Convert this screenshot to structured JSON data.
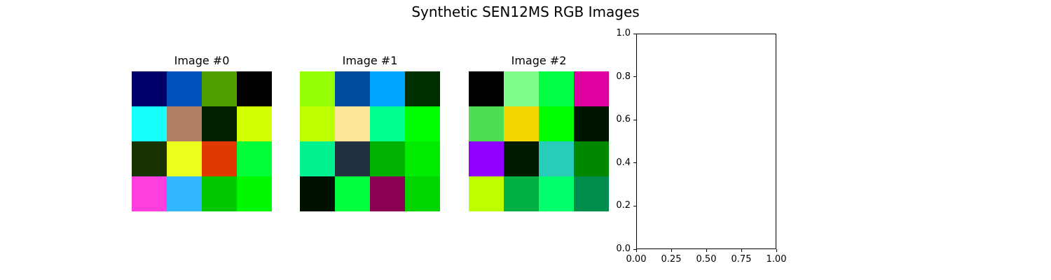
{
  "title": "Synthetic SEN12MS RGB Images",
  "chart_data": [
    {
      "type": "heatmap",
      "title": "Image #0",
      "grid": [
        [
          "#00006a",
          "#0050bd",
          "#529f00",
          "#000000"
        ],
        [
          "#17ffff",
          "#b07e63",
          "#002100",
          "#d1ff00"
        ],
        [
          "#173300",
          "#eaff1d",
          "#e13a00",
          "#00ff38"
        ],
        [
          "#ff3ee0",
          "#34b7ff",
          "#00c900",
          "#00f900"
        ]
      ]
    },
    {
      "type": "heatmap",
      "title": "Image #1",
      "grid": [
        [
          "#95ff04",
          "#004d9d",
          "#00a5ff",
          "#003000"
        ],
        [
          "#bdff00",
          "#ffe599",
          "#00ff8f",
          "#00ff00"
        ],
        [
          "#00f190",
          "#233042",
          "#00b300",
          "#00eb00"
        ],
        [
          "#001100",
          "#00ff3c",
          "#8a0052",
          "#00d500"
        ]
      ]
    },
    {
      "type": "heatmap",
      "title": "Image #2",
      "grid": [
        [
          "#000000",
          "#7fff8a",
          "#00ff44",
          "#df00a0"
        ],
        [
          "#4fdd51",
          "#f3d700",
          "#00ff00",
          "#001500"
        ],
        [
          "#9000ff",
          "#001b00",
          "#29cbb9",
          "#008900"
        ],
        [
          "#bdff00",
          "#00b042",
          "#00ff6b",
          "#008c4c"
        ]
      ]
    },
    {
      "type": "scatter",
      "title": "",
      "xlim": [
        0.0,
        1.0
      ],
      "ylim": [
        0.0,
        1.0
      ],
      "xticks": [
        "0.00",
        "0.25",
        "0.50",
        "0.75",
        "1.00"
      ],
      "yticks": [
        "0.0",
        "0.2",
        "0.4",
        "0.6",
        "0.8",
        "1.0"
      ],
      "x": [],
      "y": []
    }
  ]
}
